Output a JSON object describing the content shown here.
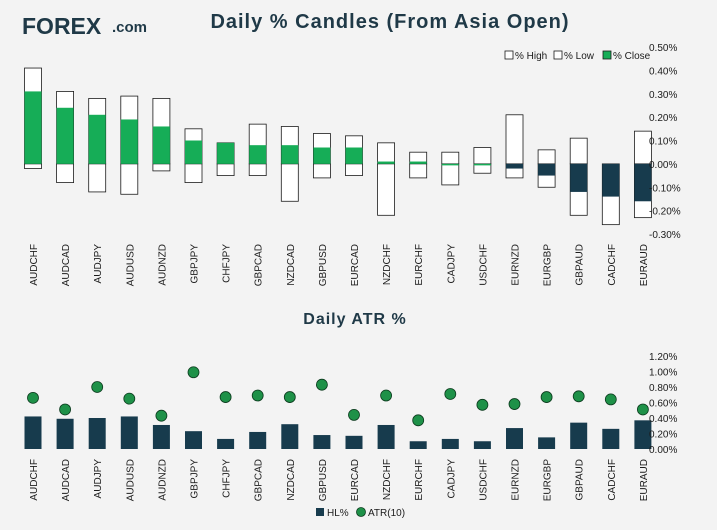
{
  "logo": {
    "brand": "FOREX",
    "suffix": ".com"
  },
  "colors": {
    "green": "#16ad57",
    "navy": "#173b4d",
    "outline": "#1b1b1b",
    "white": "#ffffff",
    "dot": "#1e9148"
  },
  "chart_data": [
    {
      "type": "candle",
      "title": "Daily % Candles (From Asia Open)",
      "categories": [
        "AUDCHF",
        "AUDCAD",
        "AUDJPY",
        "AUDUSD",
        "AUDNZD",
        "GBPJPY",
        "CHFJPY",
        "GBPCAD",
        "NZDCAD",
        "GBPUSD",
        "EURCAD",
        "NZDCHF",
        "EURCHF",
        "CADJPY",
        "USDCHF",
        "EURNZD",
        "EURGBP",
        "GBPAUD",
        "CADCHF",
        "EURAUD"
      ],
      "series": [
        {
          "name": "% High",
          "values": [
            0.41,
            0.31,
            0.28,
            0.29,
            0.28,
            0.15,
            0.09,
            0.17,
            0.16,
            0.13,
            0.12,
            0.09,
            0.05,
            0.05,
            0.07,
            0.21,
            0.06,
            0.11,
            0.0,
            0.14
          ]
        },
        {
          "name": "% Low",
          "values": [
            -0.02,
            -0.08,
            -0.12,
            -0.13,
            -0.03,
            -0.08,
            -0.05,
            -0.05,
            -0.16,
            -0.06,
            -0.05,
            -0.22,
            -0.06,
            -0.09,
            -0.04,
            -0.06,
            -0.1,
            -0.22,
            -0.26,
            -0.23
          ]
        },
        {
          "name": "% Close",
          "values": [
            0.31,
            0.24,
            0.21,
            0.19,
            0.16,
            0.1,
            0.09,
            0.08,
            0.08,
            0.07,
            0.07,
            0.01,
            0.01,
            0.0,
            0.0,
            -0.02,
            -0.05,
            -0.12,
            -0.14,
            -0.16
          ]
        }
      ],
      "ylim": [
        -0.3,
        0.5
      ],
      "ticks": [
        "0.50%",
        "0.40%",
        "0.30%",
        "0.20%",
        "0.10%",
        "0.00%",
        "-0.10%",
        "-0.20%",
        "-0.30%"
      ],
      "legend": [
        "% High",
        "% Low",
        "% Close"
      ]
    },
    {
      "type": "bar+scatter",
      "title": "Daily ATR %",
      "categories": [
        "AUDCHF",
        "AUDCAD",
        "AUDJPY",
        "AUDUSD",
        "AUDNZD",
        "GBPJPY",
        "CHFJPY",
        "GBPCAD",
        "NZDCAD",
        "GBPUSD",
        "EURCAD",
        "NZDCHF",
        "EURCHF",
        "CADJPY",
        "USDCHF",
        "EURNZD",
        "EURGBP",
        "GBPAUD",
        "CADCHF",
        "EURAUD"
      ],
      "series": [
        {
          "name": "HL%",
          "values": [
            0.42,
            0.39,
            0.4,
            0.42,
            0.31,
            0.23,
            0.13,
            0.22,
            0.32,
            0.18,
            0.17,
            0.31,
            0.1,
            0.13,
            0.1,
            0.27,
            0.15,
            0.34,
            0.26,
            0.37
          ]
        },
        {
          "name": "ATR(10)",
          "values": [
            0.66,
            0.51,
            0.8,
            0.65,
            0.43,
            0.99,
            0.67,
            0.69,
            0.67,
            0.83,
            0.44,
            0.69,
            0.37,
            0.71,
            0.57,
            0.58,
            0.67,
            0.68,
            0.64,
            0.51
          ]
        }
      ],
      "ylim": [
        0,
        1.2
      ],
      "ticks": [
        "1.20%",
        "1.00%",
        "0.80%",
        "0.60%",
        "0.40%",
        "0.20%",
        "0.00%"
      ],
      "legend": [
        "HL%",
        "ATR(10)"
      ]
    }
  ]
}
